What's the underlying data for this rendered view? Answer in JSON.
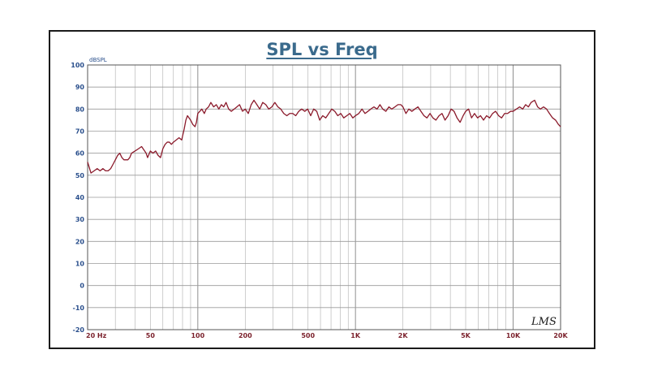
{
  "chart_data": {
    "type": "line",
    "title": "SPL vs Freq",
    "y_unit_label": "dBSPL",
    "xscale": "log",
    "xlim": [
      20,
      20000
    ],
    "ylim": [
      -20,
      100
    ],
    "grid": true,
    "yticks": [
      "100",
      "90",
      "80",
      "70",
      "60",
      "50",
      "40",
      "30",
      "20",
      "10",
      "0",
      "-10",
      "-20"
    ],
    "ytick_values": [
      100,
      90,
      80,
      70,
      60,
      50,
      40,
      30,
      20,
      10,
      0,
      -10,
      -20
    ],
    "xticks": [
      {
        "value": 20,
        "label": "20 Hz"
      },
      {
        "value": 50,
        "label": "50"
      },
      {
        "value": 100,
        "label": "100"
      },
      {
        "value": 200,
        "label": "200"
      },
      {
        "value": 500,
        "label": "500"
      },
      {
        "value": 1000,
        "label": "1K"
      },
      {
        "value": 2000,
        "label": "2K"
      },
      {
        "value": 5000,
        "label": "5K"
      },
      {
        "value": 10000,
        "label": "10K"
      },
      {
        "value": 20000,
        "label": "20K"
      }
    ],
    "watermark": "LMS",
    "series": [
      {
        "color": "#8b1a2b",
        "points": [
          [
            20,
            56
          ],
          [
            21,
            51
          ],
          [
            22,
            52
          ],
          [
            23,
            53
          ],
          [
            24,
            52
          ],
          [
            25,
            53
          ],
          [
            26,
            52
          ],
          [
            27,
            52
          ],
          [
            28,
            53
          ],
          [
            29,
            55
          ],
          [
            30,
            57
          ],
          [
            31,
            59
          ],
          [
            32,
            60
          ],
          [
            33,
            58
          ],
          [
            34,
            57
          ],
          [
            35,
            57
          ],
          [
            36,
            57
          ],
          [
            37,
            58
          ],
          [
            38,
            60
          ],
          [
            40,
            61
          ],
          [
            42,
            62
          ],
          [
            44,
            63
          ],
          [
            45,
            62
          ],
          [
            47,
            60
          ],
          [
            48,
            58
          ],
          [
            50,
            61
          ],
          [
            52,
            60
          ],
          [
            54,
            61
          ],
          [
            56,
            59
          ],
          [
            58,
            58
          ],
          [
            60,
            62
          ],
          [
            62,
            64
          ],
          [
            64,
            65
          ],
          [
            66,
            65
          ],
          [
            68,
            64
          ],
          [
            70,
            65
          ],
          [
            73,
            66
          ],
          [
            76,
            67
          ],
          [
            79,
            66
          ],
          [
            82,
            71
          ],
          [
            84,
            75
          ],
          [
            86,
            77
          ],
          [
            88,
            76
          ],
          [
            90,
            75
          ],
          [
            93,
            73
          ],
          [
            96,
            72
          ],
          [
            98,
            74
          ],
          [
            100,
            78
          ],
          [
            103,
            79
          ],
          [
            106,
            80
          ],
          [
            110,
            78
          ],
          [
            113,
            80
          ],
          [
            117,
            81
          ],
          [
            121,
            83
          ],
          [
            126,
            81
          ],
          [
            131,
            82
          ],
          [
            136,
            80
          ],
          [
            141,
            82
          ],
          [
            146,
            81
          ],
          [
            151,
            83
          ],
          [
            157,
            80
          ],
          [
            163,
            79
          ],
          [
            170,
            80
          ],
          [
            177,
            81
          ],
          [
            184,
            82
          ],
          [
            192,
            79
          ],
          [
            200,
            80
          ],
          [
            209,
            78
          ],
          [
            218,
            82
          ],
          [
            227,
            84
          ],
          [
            237,
            82
          ],
          [
            247,
            80
          ],
          [
            258,
            83
          ],
          [
            270,
            82
          ],
          [
            282,
            80
          ],
          [
            295,
            81
          ],
          [
            308,
            83
          ],
          [
            322,
            81
          ],
          [
            336,
            80
          ],
          [
            351,
            78
          ],
          [
            367,
            77
          ],
          [
            383,
            78
          ],
          [
            400,
            78
          ],
          [
            418,
            77
          ],
          [
            437,
            79
          ],
          [
            456,
            80
          ],
          [
            477,
            79
          ],
          [
            498,
            80
          ],
          [
            520,
            77
          ],
          [
            543,
            80
          ],
          [
            568,
            79
          ],
          [
            593,
            75
          ],
          [
            620,
            77
          ],
          [
            648,
            76
          ],
          [
            677,
            78
          ],
          [
            707,
            80
          ],
          [
            739,
            79
          ],
          [
            772,
            77
          ],
          [
            807,
            78
          ],
          [
            843,
            76
          ],
          [
            881,
            77
          ],
          [
            921,
            78
          ],
          [
            962,
            76
          ],
          [
            1000,
            77
          ],
          [
            1050,
            78
          ],
          [
            1100,
            80
          ],
          [
            1150,
            78
          ],
          [
            1200,
            79
          ],
          [
            1250,
            80
          ],
          [
            1310,
            81
          ],
          [
            1370,
            80
          ],
          [
            1430,
            82
          ],
          [
            1490,
            80
          ],
          [
            1560,
            79
          ],
          [
            1630,
            81
          ],
          [
            1700,
            80
          ],
          [
            1780,
            81
          ],
          [
            1860,
            82
          ],
          [
            1940,
            82
          ],
          [
            2000,
            81
          ],
          [
            2090,
            78
          ],
          [
            2180,
            80
          ],
          [
            2280,
            79
          ],
          [
            2380,
            80
          ],
          [
            2490,
            81
          ],
          [
            2600,
            79
          ],
          [
            2720,
            77
          ],
          [
            2840,
            76
          ],
          [
            2970,
            78
          ],
          [
            3100,
            76
          ],
          [
            3240,
            75
          ],
          [
            3390,
            77
          ],
          [
            3540,
            78
          ],
          [
            3700,
            75
          ],
          [
            3870,
            77
          ],
          [
            4040,
            80
          ],
          [
            4220,
            79
          ],
          [
            4410,
            76
          ],
          [
            4610,
            74
          ],
          [
            4820,
            77
          ],
          [
            5000,
            79
          ],
          [
            5220,
            80
          ],
          [
            5450,
            76
          ],
          [
            5690,
            78
          ],
          [
            5950,
            76
          ],
          [
            6210,
            77
          ],
          [
            6490,
            75
          ],
          [
            6790,
            77
          ],
          [
            7090,
            76
          ],
          [
            7410,
            78
          ],
          [
            7740,
            79
          ],
          [
            8090,
            77
          ],
          [
            8450,
            76
          ],
          [
            8830,
            78
          ],
          [
            9230,
            78
          ],
          [
            9640,
            79
          ],
          [
            10000,
            79
          ],
          [
            10500,
            80
          ],
          [
            11000,
            81
          ],
          [
            11500,
            80
          ],
          [
            12000,
            82
          ],
          [
            12500,
            81
          ],
          [
            13000,
            83
          ],
          [
            13700,
            84
          ],
          [
            14300,
            81
          ],
          [
            14900,
            80
          ],
          [
            15600,
            81
          ],
          [
            16300,
            80
          ],
          [
            17000,
            78
          ],
          [
            17800,
            76
          ],
          [
            18600,
            75
          ],
          [
            19400,
            73
          ],
          [
            20000,
            72
          ]
        ]
      }
    ]
  }
}
